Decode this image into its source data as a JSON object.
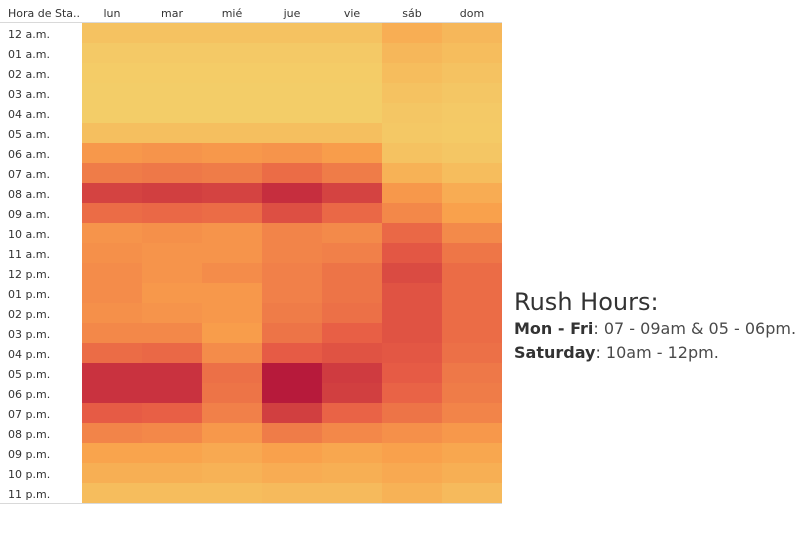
{
  "chart_data": {
    "type": "heatmap",
    "row_header": "Hora de Sta..",
    "columns": [
      "lun",
      "mar",
      "mié",
      "jue",
      "vie",
      "sáb",
      "dom"
    ],
    "rows": [
      "12 a.m.",
      "01 a.m.",
      "02 a.m.",
      "03 a.m.",
      "04 a.m.",
      "05 a.m.",
      "06 a.m.",
      "07 a.m.",
      "08 a.m.",
      "09 a.m.",
      "10 a.m.",
      "11 a.m.",
      "12 p.m.",
      "01 p.m.",
      "02 p.m.",
      "03 p.m.",
      "04 p.m.",
      "05 p.m.",
      "06 p.m.",
      "07 p.m.",
      "08 p.m.",
      "09 p.m.",
      "10 p.m.",
      "11 p.m."
    ],
    "values": [
      [
        0.1,
        0.1,
        0.1,
        0.1,
        0.1,
        0.25,
        0.18
      ],
      [
        0.05,
        0.05,
        0.05,
        0.05,
        0.05,
        0.18,
        0.14
      ],
      [
        0.03,
        0.03,
        0.03,
        0.03,
        0.03,
        0.14,
        0.1
      ],
      [
        0.02,
        0.02,
        0.02,
        0.02,
        0.02,
        0.1,
        0.07
      ],
      [
        0.02,
        0.02,
        0.02,
        0.02,
        0.02,
        0.07,
        0.05
      ],
      [
        0.12,
        0.12,
        0.12,
        0.12,
        0.12,
        0.06,
        0.04
      ],
      [
        0.38,
        0.4,
        0.38,
        0.4,
        0.36,
        0.1,
        0.07
      ],
      [
        0.52,
        0.54,
        0.52,
        0.6,
        0.52,
        0.22,
        0.14
      ],
      [
        0.8,
        0.82,
        0.8,
        0.9,
        0.8,
        0.38,
        0.26
      ],
      [
        0.6,
        0.62,
        0.6,
        0.74,
        0.62,
        0.46,
        0.34
      ],
      [
        0.4,
        0.42,
        0.4,
        0.48,
        0.45,
        0.62,
        0.45
      ],
      [
        0.42,
        0.4,
        0.4,
        0.48,
        0.5,
        0.7,
        0.55
      ],
      [
        0.44,
        0.4,
        0.44,
        0.5,
        0.56,
        0.76,
        0.6
      ],
      [
        0.44,
        0.38,
        0.38,
        0.5,
        0.56,
        0.72,
        0.6
      ],
      [
        0.42,
        0.4,
        0.38,
        0.52,
        0.58,
        0.72,
        0.6
      ],
      [
        0.46,
        0.46,
        0.36,
        0.56,
        0.66,
        0.72,
        0.6
      ],
      [
        0.6,
        0.62,
        0.44,
        0.68,
        0.72,
        0.7,
        0.58
      ],
      [
        0.88,
        0.88,
        0.58,
        1.0,
        0.84,
        0.68,
        0.54
      ],
      [
        0.88,
        0.88,
        0.56,
        1.05,
        0.82,
        0.64,
        0.52
      ],
      [
        0.68,
        0.66,
        0.5,
        0.82,
        0.64,
        0.56,
        0.48
      ],
      [
        0.48,
        0.46,
        0.38,
        0.52,
        0.46,
        0.42,
        0.38
      ],
      [
        0.32,
        0.32,
        0.28,
        0.34,
        0.3,
        0.34,
        0.3
      ],
      [
        0.24,
        0.24,
        0.22,
        0.26,
        0.24,
        0.28,
        0.24
      ],
      [
        0.14,
        0.14,
        0.14,
        0.16,
        0.16,
        0.22,
        0.16
      ]
    ],
    "color_scale": [
      "#f3d06a",
      "#f9a24c",
      "#e85e45",
      "#b71a3b"
    ]
  },
  "annotation": {
    "title": "Rush Hours:",
    "weekday_label": "Mon - Fri",
    "weekday_text": ": 07 - 09am & 05 - 06pm.",
    "saturday_label": "Saturday",
    "saturday_text": ": 10am - 12pm."
  }
}
